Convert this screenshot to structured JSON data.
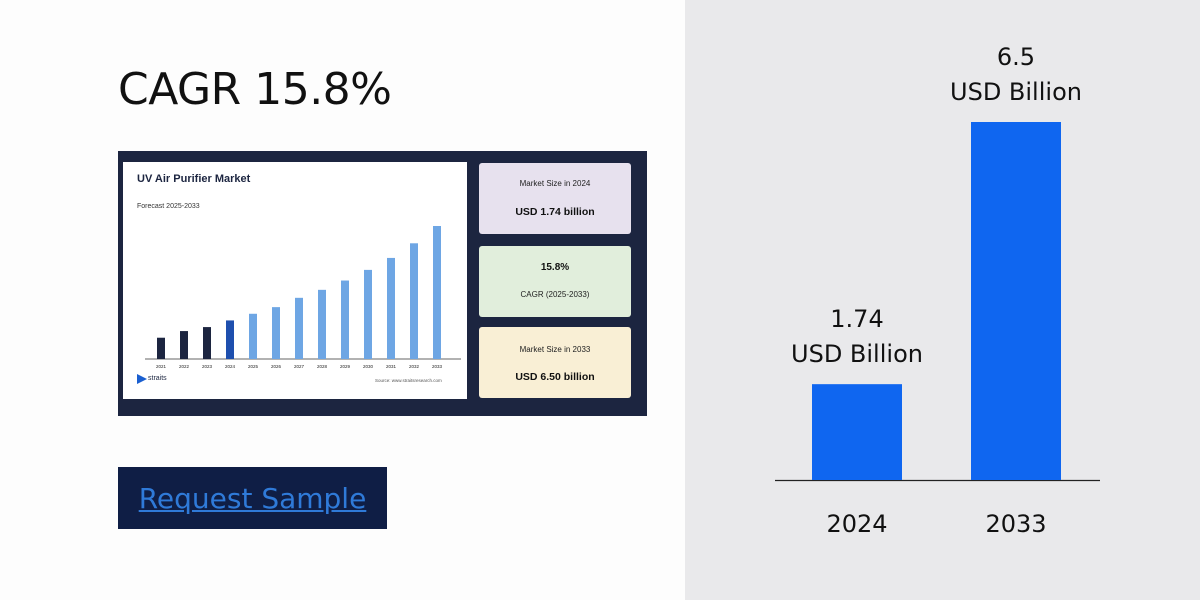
{
  "headline": "CAGR 15.8%",
  "infographic": {
    "title": "UV Air Purifier Market",
    "subtitle": "Forecast 2025-2033",
    "logo_text": "straits",
    "source": "Source: www.straitsresearch.com",
    "years": [
      "2021",
      "2022",
      "2023",
      "2024",
      "2025",
      "2026",
      "2027",
      "2028",
      "2029",
      "2030",
      "2031",
      "2032",
      "2033"
    ],
    "bar_levels": [
      0.16,
      0.21,
      0.24,
      0.29,
      0.34,
      0.39,
      0.46,
      0.52,
      0.59,
      0.67,
      0.76,
      0.87,
      1.0
    ],
    "colors": [
      "#1c2540",
      "#1c2540",
      "#1c2540",
      "#1e4fae",
      "#6ea6e4",
      "#6ea6e4",
      "#6ea6e4",
      "#6ea6e4",
      "#6ea6e4",
      "#6ea6e4",
      "#6ea6e4",
      "#6ea6e4",
      "#6ea6e4"
    ],
    "cards": [
      {
        "label": "Market Size in 2024",
        "value": "USD 1.74 billion"
      },
      {
        "value": "15.8%",
        "label": "CAGR (2025-2033)"
      },
      {
        "label": "Market Size in 2033",
        "value": "USD 6.50 billion"
      }
    ]
  },
  "cta": {
    "label": "Request Sample"
  },
  "chart_data": {
    "type": "bar",
    "categories": [
      "2024",
      "2033"
    ],
    "values": [
      1.74,
      6.5
    ],
    "data_labels": [
      {
        "value": "1.74",
        "unit": "USD Billion"
      },
      {
        "value": "6.5",
        "unit": "USD Billion"
      }
    ],
    "title": "",
    "xlabel": "",
    "ylabel": "",
    "ylim": [
      0,
      6.5
    ],
    "bar_color": "#0f66f0",
    "grid": false
  }
}
